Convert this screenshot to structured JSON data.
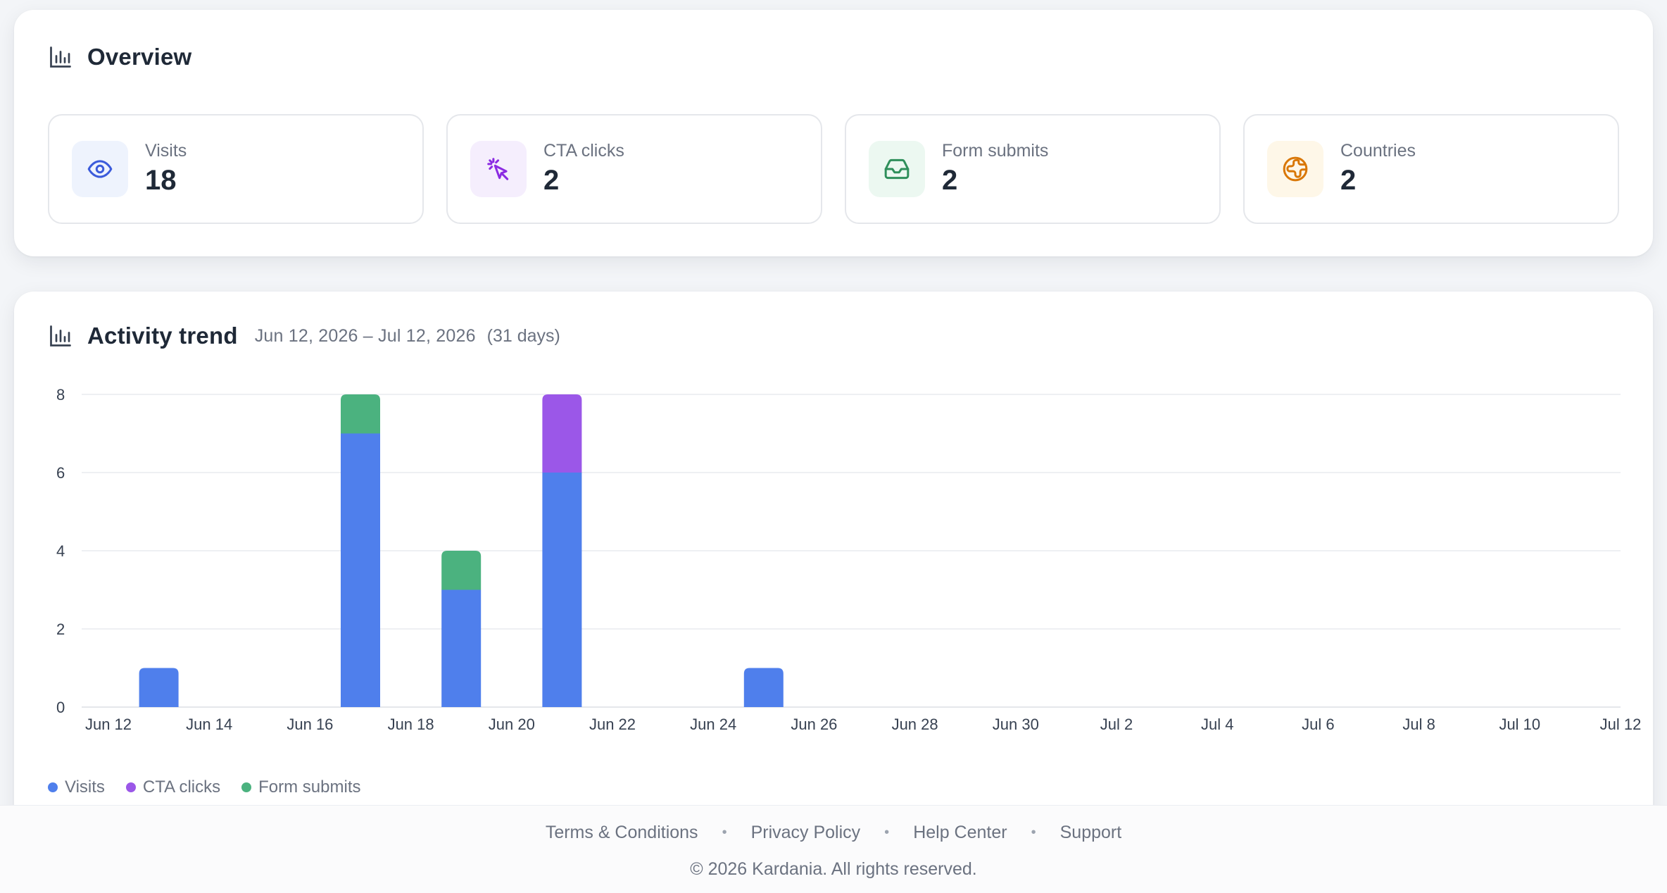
{
  "overview": {
    "title": "Overview",
    "icon": "bar-chart-icon",
    "stats": [
      {
        "label": "Visits",
        "value": "18",
        "icon": "eye-icon",
        "color": "#3b5bdb",
        "bg": "#eef3fd"
      },
      {
        "label": "CTA clicks",
        "value": "2",
        "icon": "cursor-click-icon",
        "color": "#8b2be2",
        "bg": "#f5eefd"
      },
      {
        "label": "Form submits",
        "value": "2",
        "icon": "inbox-icon",
        "color": "#2f8f5b",
        "bg": "#ecf8f1"
      },
      {
        "label": "Countries",
        "value": "2",
        "icon": "globe-icon",
        "color": "#d97706",
        "bg": "#fef7e8"
      }
    ]
  },
  "trend": {
    "title": "Activity trend",
    "icon": "bar-chart-icon",
    "range": "Jun 12, 2026 – Jul 12, 2026",
    "days": "(31 days)"
  },
  "chart_data": {
    "type": "bar",
    "stacked": true,
    "categories": [
      "Jun 12",
      "Jun 13",
      "Jun 14",
      "Jun 15",
      "Jun 16",
      "Jun 17",
      "Jun 18",
      "Jun 19",
      "Jun 20",
      "Jun 21",
      "Jun 22",
      "Jun 23",
      "Jun 24",
      "Jun 25",
      "Jun 26",
      "Jun 27",
      "Jun 28",
      "Jun 29",
      "Jun 30",
      "Jul 1",
      "Jul 2",
      "Jul 3",
      "Jul 4",
      "Jul 5",
      "Jul 6",
      "Jul 7",
      "Jul 8",
      "Jul 9",
      "Jul 10",
      "Jul 11",
      "Jul 12"
    ],
    "tick_labels": [
      "Jun 12",
      "Jun 14",
      "Jun 16",
      "Jun 18",
      "Jun 20",
      "Jun 22",
      "Jun 24",
      "Jun 26",
      "Jun 28",
      "Jun 30",
      "Jul 2",
      "Jul 4",
      "Jul 6",
      "Jul 8",
      "Jul 10",
      "Jul 12"
    ],
    "series": [
      {
        "name": "Visits",
        "color": "#4f7fec",
        "values": [
          0,
          1,
          0,
          0,
          0,
          7,
          0,
          3,
          0,
          6,
          0,
          0,
          0,
          1,
          0,
          0,
          0,
          0,
          0,
          0,
          0,
          0,
          0,
          0,
          0,
          0,
          0,
          0,
          0,
          0,
          0
        ]
      },
      {
        "name": "CTA clicks",
        "color": "#9b57e8",
        "values": [
          0,
          0,
          0,
          0,
          0,
          0,
          0,
          0,
          0,
          2,
          0,
          0,
          0,
          0,
          0,
          0,
          0,
          0,
          0,
          0,
          0,
          0,
          0,
          0,
          0,
          0,
          0,
          0,
          0,
          0,
          0
        ]
      },
      {
        "name": "Form submits",
        "color": "#4bb27f",
        "values": [
          0,
          0,
          0,
          0,
          0,
          1,
          0,
          1,
          0,
          0,
          0,
          0,
          0,
          0,
          0,
          0,
          0,
          0,
          0,
          0,
          0,
          0,
          0,
          0,
          0,
          0,
          0,
          0,
          0,
          0,
          0
        ]
      }
    ],
    "y_ticks": [
      0,
      2,
      4,
      6,
      8
    ],
    "ylim": [
      0,
      8
    ],
    "grid": true,
    "legend_position": "bottom-left"
  },
  "footer": {
    "links": [
      "Terms & Conditions",
      "Privacy Policy",
      "Help Center",
      "Support"
    ],
    "separator": "•",
    "copyright": "© 2026 Kardania. All rights reserved."
  }
}
